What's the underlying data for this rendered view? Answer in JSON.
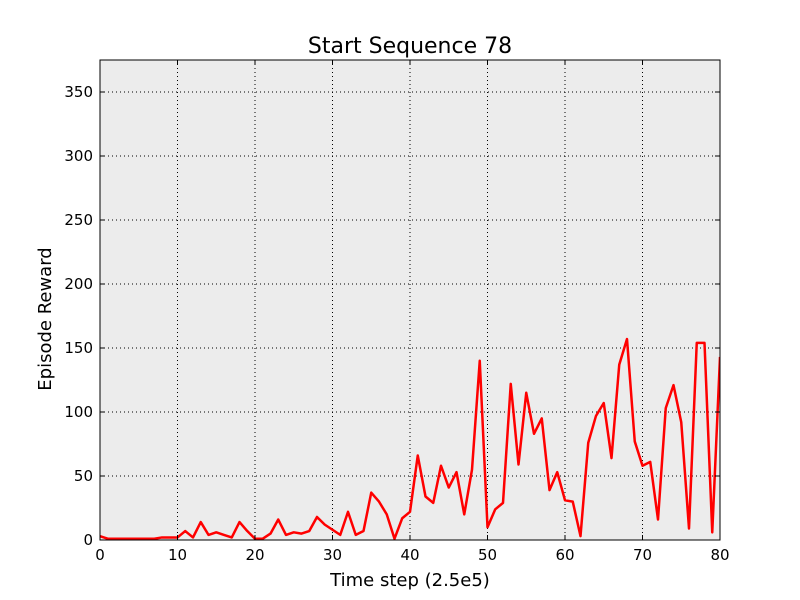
{
  "chart_data": {
    "type": "line",
    "title": "Start Sequence 78",
    "xlabel": "Time step (2.5e5)",
    "ylabel": "Episode Reward",
    "xlim": [
      0,
      80
    ],
    "ylim": [
      0,
      375
    ],
    "xticks": [
      0,
      10,
      20,
      30,
      40,
      50,
      60,
      70,
      80
    ],
    "yticks": [
      0,
      50,
      100,
      150,
      200,
      250,
      300,
      350
    ],
    "grid": true,
    "legend": "none",
    "series": [
      {
        "color": "#ff0000",
        "x": [
          0,
          1,
          2,
          3,
          4,
          5,
          6,
          7,
          8,
          9,
          10,
          11,
          12,
          13,
          14,
          15,
          16,
          17,
          18,
          19,
          20,
          21,
          22,
          23,
          24,
          25,
          26,
          27,
          28,
          29,
          30,
          31,
          32,
          33,
          34,
          35,
          36,
          37,
          38,
          39,
          40,
          41,
          42,
          43,
          44,
          45,
          46,
          47,
          48,
          49,
          50,
          51,
          52,
          53,
          54,
          55,
          56,
          57,
          58,
          59,
          60,
          61,
          62,
          63,
          64,
          65,
          66,
          67,
          68,
          69,
          70,
          71,
          72,
          73,
          74,
          75,
          76,
          77,
          78,
          79,
          80
        ],
        "y": [
          3,
          1,
          1,
          1,
          1,
          1,
          1,
          1,
          2,
          2,
          2,
          7,
          2,
          14,
          4,
          6,
          4,
          2,
          14,
          7,
          1,
          1,
          5,
          16,
          4,
          6,
          5,
          7,
          18,
          12,
          8,
          4,
          22,
          4,
          7,
          37,
          30,
          20,
          1,
          17,
          22,
          66,
          34,
          29,
          58,
          41,
          53,
          20,
          55,
          140,
          10,
          24,
          29,
          122,
          59,
          115,
          83,
          95,
          39,
          53,
          31,
          30,
          3,
          76,
          97,
          107,
          64,
          137,
          157,
          77,
          58,
          61,
          16,
          103,
          121,
          92,
          9,
          154,
          154,
          6,
          143
        ]
      }
    ]
  }
}
